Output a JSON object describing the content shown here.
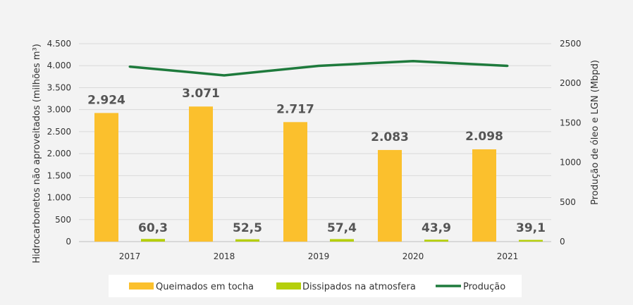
{
  "chart_data": {
    "type": "bar+line",
    "categories": [
      "2017",
      "2018",
      "2019",
      "2020",
      "2021"
    ],
    "series": [
      {
        "name": "Queimados em tocha",
        "kind": "bar",
        "axis": "left",
        "color": "#fbc02d",
        "values": [
          2924,
          3071,
          2717,
          2083,
          2098
        ],
        "labels": [
          "2.924",
          "3.071",
          "2.717",
          "2.083",
          "2.098"
        ]
      },
      {
        "name": "Dissipados na atmosfera",
        "kind": "bar",
        "axis": "left",
        "color": "#b5cf0b",
        "values": [
          60.3,
          52.5,
          57.4,
          43.9,
          39.1
        ],
        "labels": [
          "60,3",
          "52,5",
          "57,4",
          "43,9",
          "39,1"
        ]
      },
      {
        "name": "Produção",
        "kind": "line",
        "axis": "right",
        "color": "#1e7a3c",
        "values": [
          2210,
          2100,
          2220,
          2280,
          2220
        ]
      }
    ],
    "ylabel_left": "Hidrocarbonetos não aproveitados (milhões m³)",
    "ylabel_right": "Produção de óleo e LGN (Mbpd)",
    "ylim_left": [
      0,
      4500
    ],
    "ylim_right": [
      0,
      2500
    ],
    "yticks_left": [
      0,
      500,
      1000,
      1500,
      2000,
      2500,
      3000,
      3500,
      4000,
      4500
    ],
    "yticks_left_labels": [
      "0",
      "500",
      "1.000",
      "1.500",
      "2.000",
      "2.500",
      "3.000",
      "3.500",
      "4.000",
      "4.500"
    ],
    "yticks_right": [
      0,
      500,
      1000,
      1500,
      2000,
      2500
    ],
    "yticks_right_labels": [
      "0",
      "500",
      "1000",
      "1500",
      "2000",
      "2500"
    ],
    "grid": true,
    "legend_position": "bottom"
  }
}
